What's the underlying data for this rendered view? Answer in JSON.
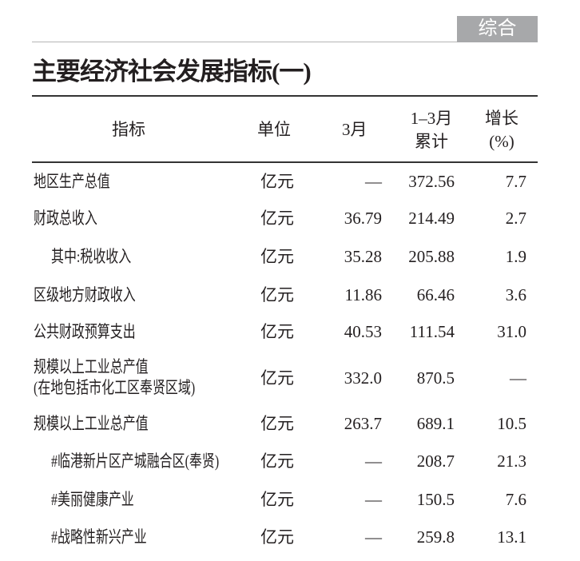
{
  "section_tab": "综合",
  "title": "主要经济社会发展指标(一)",
  "columns": {
    "indicator": "指标",
    "unit": "单位",
    "month": "3月",
    "cumulative_line1": "1–3月",
    "cumulative_line2": "累计",
    "growth_line1": "增长",
    "growth_line2": "(%)"
  },
  "rows": [
    {
      "name": "地区生产总值",
      "unit": "亿元",
      "month": "—",
      "cumulative": "372.56",
      "growth": "7.7"
    },
    {
      "name": "财政总收入",
      "unit": "亿元",
      "month": "36.79",
      "cumulative": "214.49",
      "growth": "2.7"
    },
    {
      "name": "其中:税收收入",
      "indent": true,
      "unit": "亿元",
      "month": "35.28",
      "cumulative": "205.88",
      "growth": "1.9"
    },
    {
      "name": "区级地方财政收入",
      "unit": "亿元",
      "month": "11.86",
      "cumulative": "66.46",
      "growth": "3.6"
    },
    {
      "name": "公共财政预算支出",
      "unit": "亿元",
      "month": "40.53",
      "cumulative": "111.54",
      "growth": "31.0"
    },
    {
      "name": "规模以上工业总产值",
      "name_line2": "(在地包括市化工区奉贤区域)",
      "unit": "亿元",
      "month": "332.0",
      "cumulative": "870.5",
      "growth": "—"
    },
    {
      "name": "规模以上工业总产值",
      "unit": "亿元",
      "month": "263.7",
      "cumulative": "689.1",
      "growth": "10.5"
    },
    {
      "name": "#临港新片区产城融合区(奉贤)",
      "indent": true,
      "unit": "亿元",
      "month": "—",
      "cumulative": "208.7",
      "growth": "21.3"
    },
    {
      "name": "#美丽健康产业",
      "indent": true,
      "unit": "亿元",
      "month": "—",
      "cumulative": "150.5",
      "growth": "7.6"
    },
    {
      "name": "#战略性新兴产业",
      "indent": true,
      "unit": "亿元",
      "month": "—",
      "cumulative": "259.8",
      "growth": "13.1"
    }
  ]
}
